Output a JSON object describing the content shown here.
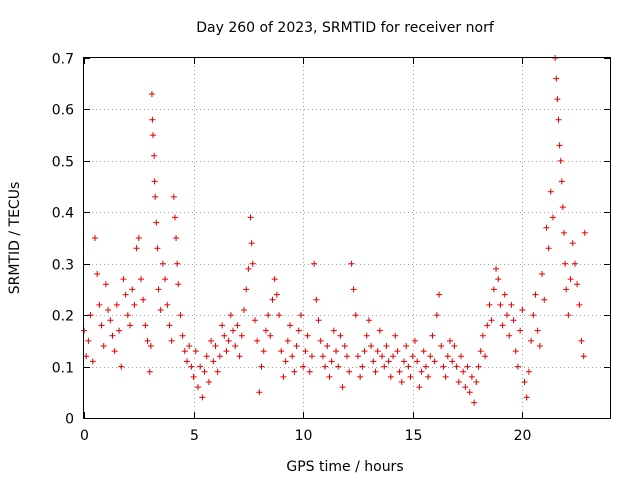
{
  "chart_data": {
    "type": "scatter",
    "title": "Day 260 of 2023, SRMTID for receiver norf",
    "xlabel": "GPS time / hours",
    "ylabel": "SRMTID / TECUs",
    "xlim": [
      0,
      24
    ],
    "ylim": [
      0,
      0.7
    ],
    "xticks": [
      0,
      5,
      10,
      15,
      20
    ],
    "xtick_labels": [
      "0",
      "5",
      "10",
      "15",
      "20"
    ],
    "yticks": [
      0,
      0.1,
      0.2,
      0.3,
      0.4,
      0.5,
      0.6,
      0.7
    ],
    "ytick_labels": [
      "0",
      "0.1",
      "0.2",
      "0.3",
      "0.4",
      "0.5",
      "0.6",
      "0.7"
    ],
    "grid": true,
    "marker": "plus",
    "marker_color": "#e00000",
    "series": [
      {
        "name": "SRMTID",
        "points": [
          [
            0.0,
            0.17
          ],
          [
            0.1,
            0.12
          ],
          [
            0.2,
            0.15
          ],
          [
            0.3,
            0.2
          ],
          [
            0.4,
            0.11
          ],
          [
            0.5,
            0.35
          ],
          [
            0.6,
            0.28
          ],
          [
            0.7,
            0.22
          ],
          [
            0.8,
            0.18
          ],
          [
            0.9,
            0.14
          ],
          [
            1.0,
            0.26
          ],
          [
            1.1,
            0.21
          ],
          [
            1.2,
            0.19
          ],
          [
            1.3,
            0.16
          ],
          [
            1.4,
            0.13
          ],
          [
            1.5,
            0.22
          ],
          [
            1.6,
            0.17
          ],
          [
            1.7,
            0.1
          ],
          [
            1.8,
            0.27
          ],
          [
            1.9,
            0.24
          ],
          [
            2.0,
            0.2
          ],
          [
            2.1,
            0.18
          ],
          [
            2.2,
            0.25
          ],
          [
            2.3,
            0.22
          ],
          [
            2.4,
            0.33
          ],
          [
            2.5,
            0.35
          ],
          [
            2.6,
            0.27
          ],
          [
            2.7,
            0.23
          ],
          [
            2.8,
            0.18
          ],
          [
            2.9,
            0.15
          ],
          [
            3.0,
            0.09
          ],
          [
            3.05,
            0.14
          ],
          [
            3.1,
            0.63
          ],
          [
            3.12,
            0.58
          ],
          [
            3.15,
            0.55
          ],
          [
            3.2,
            0.51
          ],
          [
            3.22,
            0.46
          ],
          [
            3.25,
            0.43
          ],
          [
            3.3,
            0.38
          ],
          [
            3.35,
            0.33
          ],
          [
            3.4,
            0.25
          ],
          [
            3.5,
            0.21
          ],
          [
            3.6,
            0.3
          ],
          [
            3.7,
            0.27
          ],
          [
            3.8,
            0.22
          ],
          [
            3.9,
            0.18
          ],
          [
            4.0,
            0.15
          ],
          [
            4.1,
            0.43
          ],
          [
            4.15,
            0.39
          ],
          [
            4.2,
            0.35
          ],
          [
            4.25,
            0.3
          ],
          [
            4.3,
            0.26
          ],
          [
            4.4,
            0.2
          ],
          [
            4.5,
            0.16
          ],
          [
            4.6,
            0.13
          ],
          [
            4.7,
            0.11
          ],
          [
            4.8,
            0.14
          ],
          [
            4.9,
            0.1
          ],
          [
            5.0,
            0.08
          ],
          [
            5.1,
            0.13
          ],
          [
            5.2,
            0.06
          ],
          [
            5.3,
            0.1
          ],
          [
            5.4,
            0.04
          ],
          [
            5.5,
            0.09
          ],
          [
            5.6,
            0.12
          ],
          [
            5.7,
            0.07
          ],
          [
            5.8,
            0.15
          ],
          [
            5.9,
            0.11
          ],
          [
            6.0,
            0.14
          ],
          [
            6.1,
            0.09
          ],
          [
            6.2,
            0.12
          ],
          [
            6.3,
            0.18
          ],
          [
            6.4,
            0.16
          ],
          [
            6.5,
            0.13
          ],
          [
            6.6,
            0.15
          ],
          [
            6.7,
            0.2
          ],
          [
            6.8,
            0.17
          ],
          [
            6.9,
            0.14
          ],
          [
            7.0,
            0.18
          ],
          [
            7.1,
            0.12
          ],
          [
            7.2,
            0.16
          ],
          [
            7.3,
            0.21
          ],
          [
            7.4,
            0.25
          ],
          [
            7.5,
            0.29
          ],
          [
            7.6,
            0.39
          ],
          [
            7.65,
            0.34
          ],
          [
            7.7,
            0.3
          ],
          [
            7.8,
            0.19
          ],
          [
            7.9,
            0.15
          ],
          [
            8.0,
            0.05
          ],
          [
            8.1,
            0.1
          ],
          [
            8.2,
            0.13
          ],
          [
            8.3,
            0.17
          ],
          [
            8.4,
            0.2
          ],
          [
            8.5,
            0.16
          ],
          [
            8.6,
            0.23
          ],
          [
            8.7,
            0.27
          ],
          [
            8.8,
            0.24
          ],
          [
            8.9,
            0.2
          ],
          [
            9.0,
            0.13
          ],
          [
            9.1,
            0.08
          ],
          [
            9.2,
            0.11
          ],
          [
            9.3,
            0.15
          ],
          [
            9.4,
            0.18
          ],
          [
            9.5,
            0.12
          ],
          [
            9.6,
            0.09
          ],
          [
            9.7,
            0.14
          ],
          [
            9.8,
            0.17
          ],
          [
            9.9,
            0.2
          ],
          [
            10.0,
            0.1
          ],
          [
            10.1,
            0.13
          ],
          [
            10.2,
            0.16
          ],
          [
            10.3,
            0.09
          ],
          [
            10.4,
            0.12
          ],
          [
            10.5,
            0.3
          ],
          [
            10.6,
            0.23
          ],
          [
            10.7,
            0.19
          ],
          [
            10.8,
            0.15
          ],
          [
            10.9,
            0.12
          ],
          [
            11.0,
            0.1
          ],
          [
            11.1,
            0.14
          ],
          [
            11.2,
            0.08
          ],
          [
            11.3,
            0.11
          ],
          [
            11.4,
            0.17
          ],
          [
            11.5,
            0.13
          ],
          [
            11.6,
            0.1
          ],
          [
            11.7,
            0.16
          ],
          [
            11.8,
            0.06
          ],
          [
            11.9,
            0.14
          ],
          [
            12.0,
            0.12
          ],
          [
            12.1,
            0.09
          ],
          [
            12.2,
            0.3
          ],
          [
            12.3,
            0.25
          ],
          [
            12.4,
            0.2
          ],
          [
            12.5,
            0.12
          ],
          [
            12.6,
            0.08
          ],
          [
            12.7,
            0.1
          ],
          [
            12.8,
            0.13
          ],
          [
            12.9,
            0.16
          ],
          [
            13.0,
            0.19
          ],
          [
            13.1,
            0.14
          ],
          [
            13.2,
            0.11
          ],
          [
            13.3,
            0.09
          ],
          [
            13.4,
            0.13
          ],
          [
            13.5,
            0.17
          ],
          [
            13.6,
            0.12
          ],
          [
            13.7,
            0.1
          ],
          [
            13.8,
            0.14
          ],
          [
            13.9,
            0.11
          ],
          [
            14.0,
            0.08
          ],
          [
            14.1,
            0.12
          ],
          [
            14.2,
            0.16
          ],
          [
            14.3,
            0.13
          ],
          [
            14.4,
            0.09
          ],
          [
            14.5,
            0.07
          ],
          [
            14.6,
            0.11
          ],
          [
            14.7,
            0.14
          ],
          [
            14.8,
            0.1
          ],
          [
            14.9,
            0.08
          ],
          [
            15.0,
            0.12
          ],
          [
            15.1,
            0.15
          ],
          [
            15.2,
            0.11
          ],
          [
            15.3,
            0.06
          ],
          [
            15.4,
            0.09
          ],
          [
            15.5,
            0.13
          ],
          [
            15.6,
            0.1
          ],
          [
            15.7,
            0.08
          ],
          [
            15.8,
            0.12
          ],
          [
            15.9,
            0.16
          ],
          [
            16.0,
            0.11
          ],
          [
            16.1,
            0.2
          ],
          [
            16.2,
            0.24
          ],
          [
            16.3,
            0.14
          ],
          [
            16.4,
            0.1
          ],
          [
            16.5,
            0.08
          ],
          [
            16.6,
            0.12
          ],
          [
            16.7,
            0.15
          ],
          [
            16.8,
            0.11
          ],
          [
            16.9,
            0.14
          ],
          [
            17.0,
            0.1
          ],
          [
            17.1,
            0.07
          ],
          [
            17.2,
            0.12
          ],
          [
            17.3,
            0.09
          ],
          [
            17.4,
            0.06
          ],
          [
            17.5,
            0.1
          ],
          [
            17.6,
            0.05
          ],
          [
            17.7,
            0.08
          ],
          [
            17.8,
            0.03
          ],
          [
            17.9,
            0.07
          ],
          [
            18.0,
            0.1
          ],
          [
            18.1,
            0.13
          ],
          [
            18.2,
            0.16
          ],
          [
            18.3,
            0.12
          ],
          [
            18.4,
            0.18
          ],
          [
            18.5,
            0.22
          ],
          [
            18.6,
            0.19
          ],
          [
            18.7,
            0.25
          ],
          [
            18.8,
            0.29
          ],
          [
            18.9,
            0.27
          ],
          [
            19.0,
            0.22
          ],
          [
            19.1,
            0.18
          ],
          [
            19.2,
            0.24
          ],
          [
            19.3,
            0.2
          ],
          [
            19.4,
            0.16
          ],
          [
            19.5,
            0.22
          ],
          [
            19.6,
            0.19
          ],
          [
            19.7,
            0.13
          ],
          [
            19.8,
            0.1
          ],
          [
            19.9,
            0.17
          ],
          [
            20.0,
            0.21
          ],
          [
            20.1,
            0.07
          ],
          [
            20.2,
            0.04
          ],
          [
            20.3,
            0.09
          ],
          [
            20.4,
            0.15
          ],
          [
            20.5,
            0.2
          ],
          [
            20.6,
            0.24
          ],
          [
            20.7,
            0.17
          ],
          [
            20.8,
            0.14
          ],
          [
            20.9,
            0.28
          ],
          [
            21.0,
            0.23
          ],
          [
            21.1,
            0.37
          ],
          [
            21.2,
            0.33
          ],
          [
            21.3,
            0.44
          ],
          [
            21.4,
            0.39
          ],
          [
            21.5,
            0.7
          ],
          [
            21.55,
            0.66
          ],
          [
            21.6,
            0.62
          ],
          [
            21.65,
            0.58
          ],
          [
            21.7,
            0.53
          ],
          [
            21.75,
            0.5
          ],
          [
            21.8,
            0.46
          ],
          [
            21.85,
            0.41
          ],
          [
            21.9,
            0.36
          ],
          [
            21.95,
            0.3
          ],
          [
            22.0,
            0.25
          ],
          [
            22.1,
            0.2
          ],
          [
            22.2,
            0.27
          ],
          [
            22.3,
            0.34
          ],
          [
            22.4,
            0.3
          ],
          [
            22.5,
            0.26
          ],
          [
            22.6,
            0.22
          ],
          [
            22.7,
            0.15
          ],
          [
            22.8,
            0.12
          ],
          [
            22.85,
            0.36
          ]
        ]
      }
    ]
  }
}
